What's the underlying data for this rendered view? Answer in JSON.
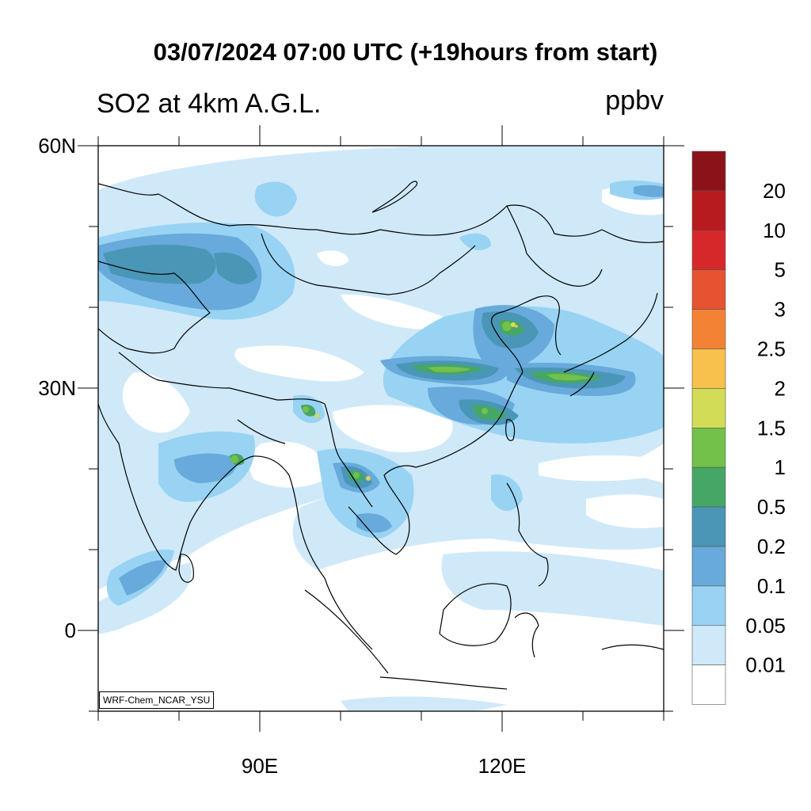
{
  "figure": {
    "title": "03/07/2024 07:00 UTC (+19hours from start)",
    "subtitle": "SO2 at 4km A.G.L.",
    "units": "ppbv",
    "credit": "WRF-Chem_NCAR_YSU"
  },
  "map": {
    "lon_range": [
      70,
      140
    ],
    "lat_range": [
      -10,
      60
    ],
    "lat_tick_labels": [
      {
        "label": "60N",
        "lat": 60
      },
      {
        "label": "30N",
        "lat": 30
      },
      {
        "label": "0",
        "lat": 0
      }
    ],
    "lon_tick_labels": [
      {
        "label": "90E",
        "lon": 90
      },
      {
        "label": "120E",
        "lon": 120
      }
    ],
    "minor_lat_ticks": [
      50,
      40,
      20,
      10,
      -10
    ],
    "minor_lon_ticks": [
      70,
      80,
      100,
      110,
      130,
      140
    ]
  },
  "colorbar": {
    "labels": [
      "20",
      "10",
      "5",
      "3",
      "2.5",
      "2",
      "1.5",
      "1",
      "0.5",
      "0.2",
      "0.1",
      "0.05",
      "0.01"
    ],
    "colors": [
      "#8b1219",
      "#b71b20",
      "#d6282b",
      "#e55330",
      "#f38235",
      "#f8c04c",
      "#d2dc57",
      "#73c04a",
      "#46a666",
      "#4a96b6",
      "#67aadb",
      "#98d3f3",
      "#cfe9f9",
      "#ffffff"
    ]
  }
}
